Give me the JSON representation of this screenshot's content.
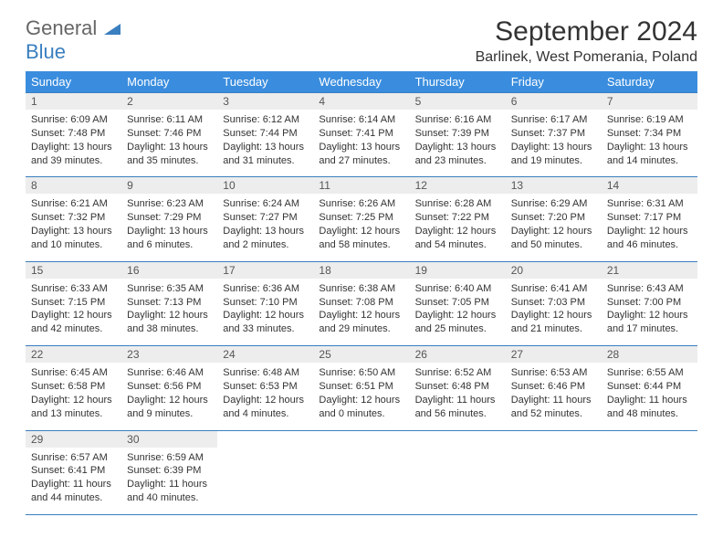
{
  "brand": {
    "prefix": "General",
    "suffix": "Blue"
  },
  "title": {
    "month": "September 2024",
    "location": "Barlinek, West Pomerania, Poland"
  },
  "colors": {
    "header_bg": "#3a8dde",
    "header_text": "#ffffff",
    "border": "#3a7fbf",
    "daynum_bg": "#ededed",
    "text": "#333333",
    "logo_accent": "#3a7fbf"
  },
  "day_labels": [
    "Sunday",
    "Monday",
    "Tuesday",
    "Wednesday",
    "Thursday",
    "Friday",
    "Saturday"
  ],
  "weeks": [
    [
      {
        "n": "1",
        "sr": "6:09 AM",
        "ss": "7:48 PM",
        "dl": "13 hours and 39 minutes."
      },
      {
        "n": "2",
        "sr": "6:11 AM",
        "ss": "7:46 PM",
        "dl": "13 hours and 35 minutes."
      },
      {
        "n": "3",
        "sr": "6:12 AM",
        "ss": "7:44 PM",
        "dl": "13 hours and 31 minutes."
      },
      {
        "n": "4",
        "sr": "6:14 AM",
        "ss": "7:41 PM",
        "dl": "13 hours and 27 minutes."
      },
      {
        "n": "5",
        "sr": "6:16 AM",
        "ss": "7:39 PM",
        "dl": "13 hours and 23 minutes."
      },
      {
        "n": "6",
        "sr": "6:17 AM",
        "ss": "7:37 PM",
        "dl": "13 hours and 19 minutes."
      },
      {
        "n": "7",
        "sr": "6:19 AM",
        "ss": "7:34 PM",
        "dl": "13 hours and 14 minutes."
      }
    ],
    [
      {
        "n": "8",
        "sr": "6:21 AM",
        "ss": "7:32 PM",
        "dl": "13 hours and 10 minutes."
      },
      {
        "n": "9",
        "sr": "6:23 AM",
        "ss": "7:29 PM",
        "dl": "13 hours and 6 minutes."
      },
      {
        "n": "10",
        "sr": "6:24 AM",
        "ss": "7:27 PM",
        "dl": "13 hours and 2 minutes."
      },
      {
        "n": "11",
        "sr": "6:26 AM",
        "ss": "7:25 PM",
        "dl": "12 hours and 58 minutes."
      },
      {
        "n": "12",
        "sr": "6:28 AM",
        "ss": "7:22 PM",
        "dl": "12 hours and 54 minutes."
      },
      {
        "n": "13",
        "sr": "6:29 AM",
        "ss": "7:20 PM",
        "dl": "12 hours and 50 minutes."
      },
      {
        "n": "14",
        "sr": "6:31 AM",
        "ss": "7:17 PM",
        "dl": "12 hours and 46 minutes."
      }
    ],
    [
      {
        "n": "15",
        "sr": "6:33 AM",
        "ss": "7:15 PM",
        "dl": "12 hours and 42 minutes."
      },
      {
        "n": "16",
        "sr": "6:35 AM",
        "ss": "7:13 PM",
        "dl": "12 hours and 38 minutes."
      },
      {
        "n": "17",
        "sr": "6:36 AM",
        "ss": "7:10 PM",
        "dl": "12 hours and 33 minutes."
      },
      {
        "n": "18",
        "sr": "6:38 AM",
        "ss": "7:08 PM",
        "dl": "12 hours and 29 minutes."
      },
      {
        "n": "19",
        "sr": "6:40 AM",
        "ss": "7:05 PM",
        "dl": "12 hours and 25 minutes."
      },
      {
        "n": "20",
        "sr": "6:41 AM",
        "ss": "7:03 PM",
        "dl": "12 hours and 21 minutes."
      },
      {
        "n": "21",
        "sr": "6:43 AM",
        "ss": "7:00 PM",
        "dl": "12 hours and 17 minutes."
      }
    ],
    [
      {
        "n": "22",
        "sr": "6:45 AM",
        "ss": "6:58 PM",
        "dl": "12 hours and 13 minutes."
      },
      {
        "n": "23",
        "sr": "6:46 AM",
        "ss": "6:56 PM",
        "dl": "12 hours and 9 minutes."
      },
      {
        "n": "24",
        "sr": "6:48 AM",
        "ss": "6:53 PM",
        "dl": "12 hours and 4 minutes."
      },
      {
        "n": "25",
        "sr": "6:50 AM",
        "ss": "6:51 PM",
        "dl": "12 hours and 0 minutes."
      },
      {
        "n": "26",
        "sr": "6:52 AM",
        "ss": "6:48 PM",
        "dl": "11 hours and 56 minutes."
      },
      {
        "n": "27",
        "sr": "6:53 AM",
        "ss": "6:46 PM",
        "dl": "11 hours and 52 minutes."
      },
      {
        "n": "28",
        "sr": "6:55 AM",
        "ss": "6:44 PM",
        "dl": "11 hours and 48 minutes."
      }
    ],
    [
      {
        "n": "29",
        "sr": "6:57 AM",
        "ss": "6:41 PM",
        "dl": "11 hours and 44 minutes."
      },
      {
        "n": "30",
        "sr": "6:59 AM",
        "ss": "6:39 PM",
        "dl": "11 hours and 40 minutes."
      },
      null,
      null,
      null,
      null,
      null
    ]
  ],
  "labels": {
    "sunrise": "Sunrise:",
    "sunset": "Sunset:",
    "daylight": "Daylight:"
  }
}
